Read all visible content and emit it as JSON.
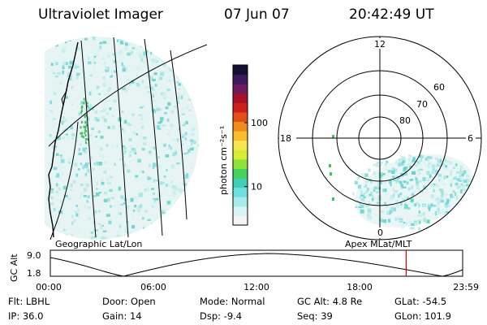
{
  "header": {
    "title": "Ultraviolet Imager",
    "date": "07 Jun 07",
    "time": "20:42:49 UT"
  },
  "colorbar": {
    "unit_label": "photon cm⁻²s⁻¹",
    "tick_labels": [
      "100",
      "10"
    ],
    "tick_values": [
      100,
      10
    ],
    "range": [
      2.5,
      800
    ],
    "scale": "log",
    "colors": [
      "#f4f4f4",
      "#d8f4f4",
      "#a9ecec",
      "#6fdede",
      "#3fcfb5",
      "#44d25a",
      "#8de33b",
      "#d8ec33",
      "#f4e64d",
      "#f6be2c",
      "#f08a1c",
      "#e05018",
      "#cf1f1a",
      "#a8102a",
      "#6e1a60",
      "#3b1a5e",
      "#141033"
    ]
  },
  "left_panel": {
    "caption": "Geographic Lat/Lon"
  },
  "right_panel": {
    "caption": "Apex MLat/MLT",
    "mlt_labels": {
      "top": "12",
      "left": "18",
      "right": "6",
      "bottom": "0"
    },
    "lat_labels": [
      "60",
      "70",
      "80"
    ],
    "lat_values": [
      60,
      70,
      80
    ]
  },
  "altitude_plot": {
    "axis_label": "GC Alt",
    "y_ticks": [
      "9.0",
      "1.8"
    ],
    "x_ticks": [
      "00:00",
      "06:00",
      "12:00",
      "18:00",
      "23:59"
    ],
    "marker_time_hours": 20.71,
    "marker_color": "#cc0000"
  },
  "info": {
    "filter": "Flt: LBHL",
    "door": "Door: Open",
    "mode": "Mode: Normal",
    "gc_alt": "GC Alt: 4.8 Re",
    "glat": "GLat: -54.5",
    "ip": "IP: 36.0",
    "gain": "Gain: 14",
    "dsp": "Dsp:    -9.4",
    "seq": "Seq: 39",
    "glon": "GLon: 101.9"
  }
}
